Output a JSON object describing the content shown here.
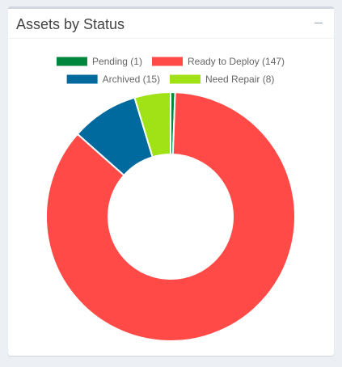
{
  "panel": {
    "title": "Assets by Status",
    "collapse_icon": "minus-icon"
  },
  "chart_data": {
    "type": "pie",
    "donut": true,
    "legend_position": "top",
    "labels": [
      "Pending (1)",
      "Ready to Deploy (147)",
      "Archived (15)",
      "Need Repair (8)"
    ],
    "values": [
      1,
      147,
      15,
      8
    ],
    "colors": [
      "#00873d",
      "#ff4a47",
      "#00699e",
      "#a1e216"
    ]
  }
}
